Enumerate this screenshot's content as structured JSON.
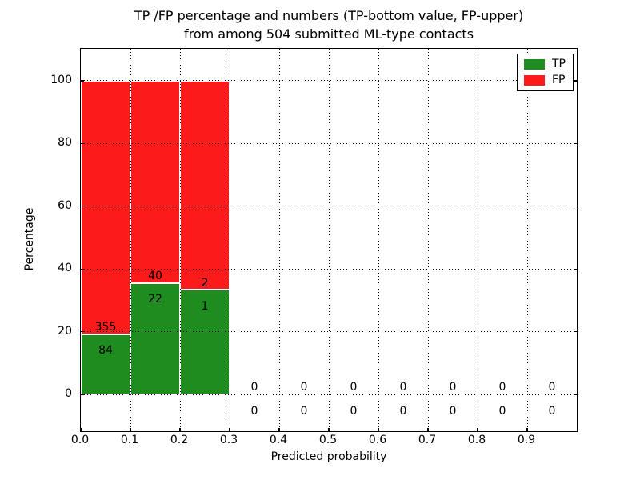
{
  "title": {
    "line1": "TP /FP percentage and numbers (TP-bottom value, FP-upper)",
    "line2": "from among 504 submitted ML-type contacts"
  },
  "axes": {
    "xlabel": "Predicted probability",
    "ylabel": "Percentage",
    "xtick_labels": [
      "0.0",
      "0.1",
      "0.2",
      "0.3",
      "0.4",
      "0.5",
      "0.6",
      "0.7",
      "0.8",
      "0.9"
    ],
    "ytick_labels": [
      "0",
      "20",
      "40",
      "60",
      "80",
      "100"
    ]
  },
  "legend": {
    "items": [
      {
        "label": "TP",
        "color": "#1e8c1e"
      },
      {
        "label": "FP",
        "color": "#fb1b1b"
      }
    ]
  },
  "chart_data": {
    "type": "bar",
    "stacked": true,
    "title": "TP /FP percentage and numbers (TP-bottom value, FP-upper) from among 504 submitted ML-type contacts",
    "xlabel": "Predicted probability",
    "ylabel": "Percentage",
    "bin_start": [
      0.0,
      0.1,
      0.2,
      0.3,
      0.4,
      0.5,
      0.6,
      0.7,
      0.8,
      0.9
    ],
    "bin_width": 0.1,
    "series": [
      {
        "name": "TP",
        "color": "#1e8c1e",
        "counts": [
          84,
          22,
          1,
          0,
          0,
          0,
          0,
          0,
          0,
          0
        ],
        "percent": [
          19.134,
          35.484,
          33.333,
          0,
          0,
          0,
          0,
          0,
          0,
          0
        ]
      },
      {
        "name": "FP",
        "color": "#fb1b1b",
        "counts": [
          355,
          40,
          2,
          0,
          0,
          0,
          0,
          0,
          0,
          0
        ],
        "percent": [
          80.866,
          64.516,
          66.667,
          0,
          0,
          0,
          0,
          0,
          0,
          0
        ]
      }
    ],
    "xlim": [
      0,
      1.0
    ],
    "ylim": [
      -11.7,
      110.2
    ],
    "xticks": [
      0,
      0.1,
      0.2,
      0.3,
      0.4,
      0.5,
      0.6,
      0.7,
      0.8,
      0.9
    ],
    "yticks": [
      0,
      20,
      40,
      60,
      80,
      100
    ],
    "xgrid": [
      0.1,
      0.2,
      0.3,
      0.4,
      0.5,
      0.6,
      0.7,
      0.8,
      0.9
    ],
    "grid": "dotted",
    "legend_position": "upper right",
    "count_label_offsets": {
      "fp_upper": 2.2,
      "tp_bottom": -5.2
    }
  }
}
